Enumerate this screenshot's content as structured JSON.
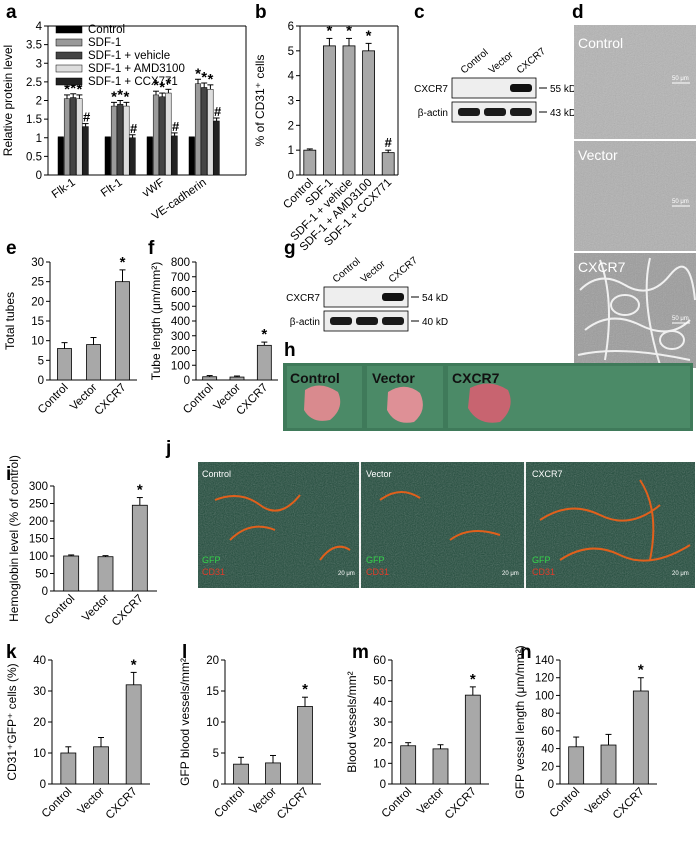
{
  "panel_labels": {
    "a": "a",
    "b": "b",
    "c": "c",
    "d": "d",
    "e": "e",
    "f": "f",
    "g": "g",
    "h": "h",
    "i": "i",
    "j": "j",
    "k": "k",
    "l": "l",
    "m": "m",
    "n": "n"
  },
  "colors": {
    "control": "#000000",
    "sdf1": "#9a9a9a",
    "vehicle": "#444444",
    "amd": "#dddddd",
    "ccx": "#222222",
    "gray_bar": "#a8a8a8",
    "tissue_bg": "#3f7a5a",
    "tissue": "#d98a8e"
  },
  "chart_data": [
    {
      "id": "a",
      "type": "bar",
      "ylabel": "Relative protein level",
      "ylim": [
        0,
        4
      ],
      "yticks": [
        0,
        0.5,
        1,
        1.5,
        2,
        2.5,
        3,
        3.5,
        4
      ],
      "categories": [
        "Flk-1",
        "Flt-1",
        "vWF",
        "VE-cadherin"
      ],
      "series": [
        {
          "name": "Control",
          "values": [
            1,
            1,
            1,
            1
          ],
          "err": [
            0.02,
            0.02,
            0.02,
            0.02
          ]
        },
        {
          "name": "SDF-1",
          "values": [
            2.05,
            1.85,
            2.15,
            2.45
          ],
          "err": [
            0.1,
            0.1,
            0.1,
            0.12
          ]
        },
        {
          "name": "SDF-1 + vehicle",
          "values": [
            2.08,
            1.9,
            2.1,
            2.35
          ],
          "err": [
            0.1,
            0.1,
            0.1,
            0.12
          ]
        },
        {
          "name": "SDF-1 + AMD3100",
          "values": [
            2.05,
            1.85,
            2.2,
            2.3
          ],
          "err": [
            0.1,
            0.1,
            0.1,
            0.12
          ]
        },
        {
          "name": "SDF-1 + CCX771",
          "values": [
            1.3,
            1.0,
            1.05,
            1.45
          ],
          "err": [
            0.08,
            0.08,
            0.08,
            0.08
          ]
        }
      ],
      "annotations": {
        "stars": "*",
        "hash": "#"
      }
    },
    {
      "id": "b",
      "type": "bar",
      "ylabel": "% of CD31⁺ cells",
      "ylim": [
        0,
        6
      ],
      "yticks": [
        0,
        1,
        2,
        3,
        4,
        5,
        6
      ],
      "categories": [
        "Control",
        "SDF-1",
        "SDF-1 + vehicle",
        "SDF-1 + AMD3100",
        "SDF-1 + CCX771"
      ],
      "values": [
        1.0,
        5.2,
        5.2,
        5.0,
        0.9
      ],
      "err": [
        0.05,
        0.3,
        0.3,
        0.3,
        0.1
      ],
      "marks": [
        "",
        "*",
        "*",
        "*",
        "#"
      ]
    },
    {
      "id": "e",
      "type": "bar",
      "ylabel": "Total tubes",
      "ylim": [
        0,
        30
      ],
      "yticks": [
        0,
        5,
        10,
        15,
        20,
        25,
        30
      ],
      "categories": [
        "Control",
        "Vector",
        "CXCR7"
      ],
      "values": [
        8,
        9,
        25
      ],
      "err": [
        1.5,
        1.8,
        3
      ],
      "marks": [
        "",
        "",
        "*"
      ]
    },
    {
      "id": "f",
      "type": "bar",
      "ylabel": "Tube length (μm/mm²)",
      "ylim": [
        0,
        800
      ],
      "yticks": [
        0,
        100,
        200,
        300,
        400,
        500,
        600,
        700,
        800
      ],
      "categories": [
        "Control",
        "Vector",
        "CXCR7"
      ],
      "values": [
        22,
        20,
        235
      ],
      "err": [
        8,
        7,
        22
      ],
      "marks": [
        "",
        "",
        "*"
      ]
    },
    {
      "id": "i",
      "type": "bar",
      "ylabel": "Hemoglobin level (% of control)",
      "ylim": [
        0,
        300
      ],
      "yticks": [
        0,
        50,
        100,
        150,
        200,
        250,
        300
      ],
      "categories": [
        "Control",
        "Vector",
        "CXCR7"
      ],
      "values": [
        100,
        98,
        245
      ],
      "err": [
        3,
        3,
        22
      ],
      "marks": [
        "",
        "",
        "*"
      ]
    },
    {
      "id": "k",
      "type": "bar",
      "ylabel": "CD31⁺GFP⁺ cells (%)",
      "ylim": [
        0,
        40
      ],
      "yticks": [
        0,
        10,
        20,
        30,
        40
      ],
      "categories": [
        "Control",
        "Vector",
        "CXCR7"
      ],
      "values": [
        10,
        12,
        32
      ],
      "err": [
        2,
        3,
        4
      ],
      "marks": [
        "",
        "",
        "*"
      ]
    },
    {
      "id": "l",
      "type": "bar",
      "ylabel": "GFP blood vessels/mm²",
      "ylim": [
        0,
        20
      ],
      "yticks": [
        0,
        5,
        10,
        15,
        20
      ],
      "categories": [
        "Control",
        "Vector",
        "CXCR7"
      ],
      "values": [
        3.2,
        3.4,
        12.5
      ],
      "err": [
        1.1,
        1.2,
        1.5
      ],
      "marks": [
        "",
        "",
        "*"
      ]
    },
    {
      "id": "m",
      "type": "bar",
      "ylabel": "Blood vessels/mm²",
      "ylim": [
        0,
        60
      ],
      "yticks": [
        0,
        10,
        20,
        30,
        40,
        50,
        60
      ],
      "categories": [
        "Control",
        "Vector",
        "CXCR7"
      ],
      "values": [
        18.5,
        17,
        43
      ],
      "err": [
        1.5,
        2,
        4
      ],
      "marks": [
        "",
        "",
        "*"
      ]
    },
    {
      "id": "n",
      "type": "bar",
      "ylabel": "GFP vessel length (μm/mm²)",
      "ylim": [
        0,
        140
      ],
      "yticks": [
        0,
        20,
        40,
        60,
        80,
        100,
        120,
        140
      ],
      "categories": [
        "Control",
        "Vector",
        "CXCR7"
      ],
      "values": [
        42,
        44,
        105
      ],
      "err": [
        11,
        12,
        15
      ],
      "marks": [
        "",
        "",
        "*"
      ]
    }
  ],
  "western": [
    {
      "id": "c",
      "lanes": [
        "Control",
        "Vector",
        "CXCR7"
      ],
      "rows": [
        "CXCR7",
        "β-actin"
      ],
      "markers": [
        "55 kD",
        "43 kD"
      ]
    },
    {
      "id": "g",
      "lanes": [
        "Control",
        "Vector",
        "CXCR7"
      ],
      "rows": [
        "CXCR7",
        "β-actin"
      ],
      "markers": [
        "54 kD",
        "40 kD"
      ]
    }
  ],
  "micro_d": {
    "labels": [
      "Control",
      "Vector",
      "CXCR7"
    ],
    "scale": "50 μm"
  },
  "tissue_h": {
    "labels": [
      "Control",
      "Vector",
      "CXCR7"
    ]
  },
  "fluor_j": {
    "labels": [
      "Control",
      "Vector",
      "CXCR7"
    ],
    "gfp": "GFP",
    "cd31": "CD31",
    "scale": "20 μm"
  }
}
